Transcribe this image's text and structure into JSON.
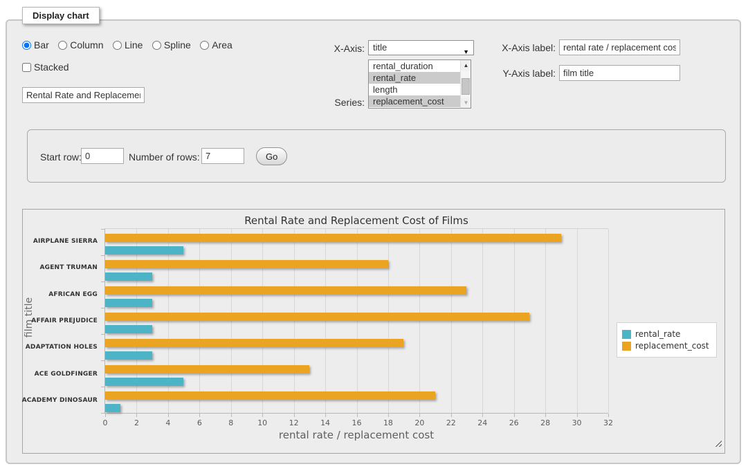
{
  "panel": {
    "title": "Display chart"
  },
  "chart_type": {
    "options": [
      {
        "label": "Bar",
        "checked": true
      },
      {
        "label": "Column",
        "checked": false
      },
      {
        "label": "Line",
        "checked": false
      },
      {
        "label": "Spline",
        "checked": false
      },
      {
        "label": "Area",
        "checked": false
      }
    ]
  },
  "stacked": {
    "label": "Stacked",
    "checked": false
  },
  "title_input": {
    "value": "Rental Rate and Replacement Cost of Films"
  },
  "x_axis_select": {
    "label": "X-Axis:",
    "value": "title",
    "arrow_icon": "▼"
  },
  "series_select": {
    "label": "Series:",
    "options": [
      {
        "label": "rental_duration",
        "selected": false
      },
      {
        "label": "rental_rate",
        "selected": true
      },
      {
        "label": "length",
        "selected": false
      },
      {
        "label": "replacement_cost",
        "selected": true
      }
    ],
    "scrollbar": {
      "up_icon": "▲",
      "down_icon": "▼"
    }
  },
  "x_axis_label_input": {
    "label": "X-Axis label:",
    "value": "rental rate / replacement cost"
  },
  "y_axis_label_input": {
    "label": "Y-Axis label:",
    "value": "film title"
  },
  "rows_form": {
    "start_row_label": "Start row:",
    "start_row_value": "0",
    "number_of_rows_label": "Number of rows:",
    "number_of_rows_value": "7",
    "go_button": "Go"
  },
  "colors": {
    "rental_rate": "#4db3c6",
    "replacement_cost": "#eba422"
  },
  "chart_data": {
    "type": "bar",
    "title": "Rental Rate and Replacement Cost of Films",
    "xlabel": "rental rate / replacement cost",
    "ylabel": "film title",
    "categories": [
      "AIRPLANE SIERRA",
      "AGENT TRUMAN",
      "AFRICAN EGG",
      "AFFAIR PREJUDICE",
      "ADAPTATION HOLES",
      "ACE GOLDFINGER",
      "ACADEMY DINOSAUR"
    ],
    "series": [
      {
        "name": "rental_rate",
        "color": "#4db3c6",
        "values": [
          4.99,
          2.99,
          2.99,
          2.99,
          2.99,
          4.99,
          0.99
        ]
      },
      {
        "name": "replacement_cost",
        "color": "#eba422",
        "values": [
          28.99,
          17.99,
          22.99,
          26.99,
          18.99,
          12.99,
          20.99
        ]
      }
    ],
    "xlim": [
      0,
      32
    ],
    "xtick_step": 2,
    "grid": true,
    "legend_position": "right",
    "bar_order_note": "replacement_cost bar drawn above rental_rate bar in each category band"
  }
}
